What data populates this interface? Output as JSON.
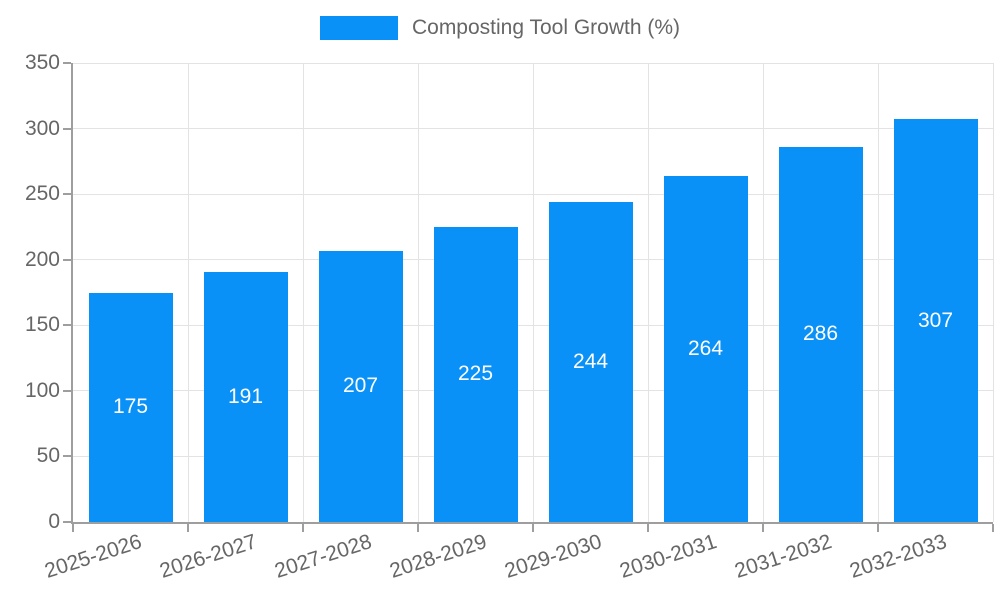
{
  "chart_data": {
    "type": "bar",
    "title": "Composting Tool Growth (%)",
    "legend_position": "top",
    "categories": [
      "2025-2026",
      "2026-2027",
      "2027-2028",
      "2028-2029",
      "2029-2030",
      "2030-2031",
      "2031-2032",
      "2032-2033"
    ],
    "values": [
      175,
      191,
      207,
      225,
      244,
      264,
      286,
      307
    ],
    "xlabel": "",
    "ylabel": "",
    "ylim": [
      0,
      350
    ],
    "y_ticks": [
      0,
      50,
      100,
      150,
      200,
      250,
      300,
      350
    ],
    "grid": true,
    "value_labels_inside_bars": true,
    "colors": {
      "bar": "#0a91f8",
      "axis_line": "#9e9e9e",
      "gridline": "#e3e3e3",
      "axis_text": "#666666",
      "value_text": "#ffffff"
    }
  }
}
